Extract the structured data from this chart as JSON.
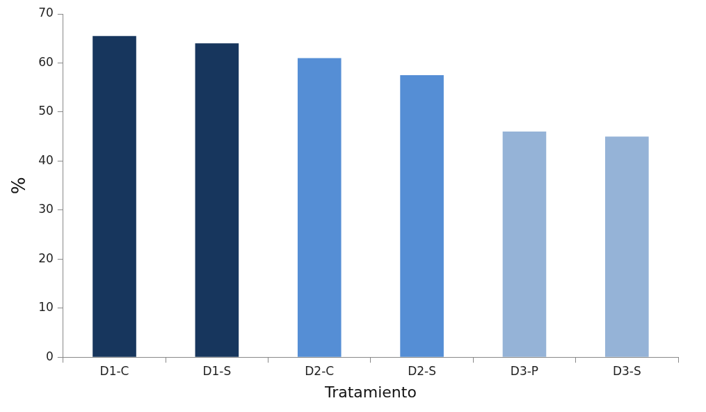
{
  "chart_data": {
    "type": "bar",
    "xlabel": "Tratamiento",
    "ylabel": "%",
    "categories": [
      "D1-C",
      "D1-S",
      "D2-C",
      "D2-S",
      "D3-P",
      "D3-S"
    ],
    "values": [
      65.5,
      64,
      61,
      57.5,
      46,
      45
    ],
    "colors": [
      "#17365d",
      "#17365d",
      "#558ed5",
      "#558ed5",
      "#95b3d7",
      "#95b3d7"
    ],
    "ylim": [
      0,
      70
    ],
    "yticks": [
      0,
      10,
      20,
      30,
      40,
      50,
      60,
      70
    ],
    "grid": false
  }
}
